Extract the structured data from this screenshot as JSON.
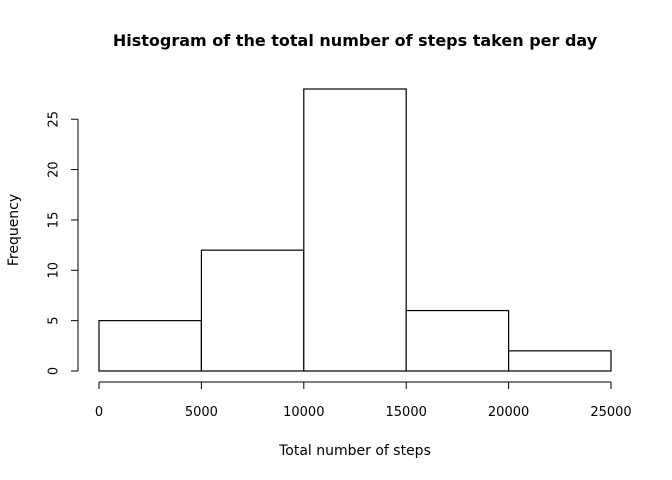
{
  "chart_data": {
    "type": "bar",
    "title": "Histogram of the total number of steps taken per day",
    "xlabel": "Total number of steps",
    "ylabel": "Frequency",
    "bins": [
      {
        "start": 0,
        "end": 5000,
        "count": 5
      },
      {
        "start": 5000,
        "end": 10000,
        "count": 12
      },
      {
        "start": 10000,
        "end": 15000,
        "count": 28
      },
      {
        "start": 15000,
        "end": 20000,
        "count": 6
      },
      {
        "start": 20000,
        "end": 25000,
        "count": 2
      }
    ],
    "xlim": [
      0,
      25000
    ],
    "ylim": [
      0,
      28
    ],
    "x_ticks": [
      0,
      5000,
      10000,
      15000,
      20000,
      25000
    ],
    "y_ticks": [
      0,
      5,
      10,
      15,
      20,
      25
    ],
    "grid": false,
    "bar_fill": "#ffffff",
    "bar_stroke": "#000000"
  }
}
